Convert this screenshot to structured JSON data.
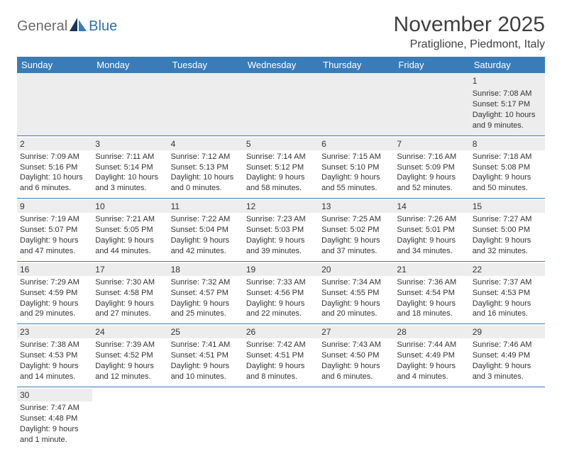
{
  "brand": {
    "part1": "General",
    "part2": "Blue"
  },
  "header": {
    "month_title": "November 2025",
    "location": "Pratiglione, Piedmont, Italy"
  },
  "style": {
    "header_bg": "#3a7cb8",
    "header_text": "#ffffff",
    "daynum_bg": "#ededed",
    "row_border": "#3a7cb8",
    "logo_gray": "#6b6b6b",
    "logo_blue": "#2f6fa8",
    "sail_dark": "#16365a",
    "sail_light": "#3a7cb8"
  },
  "day_headers": [
    "Sunday",
    "Monday",
    "Tuesday",
    "Wednesday",
    "Thursday",
    "Friday",
    "Saturday"
  ],
  "weeks": [
    [
      null,
      null,
      null,
      null,
      null,
      null,
      {
        "n": "1",
        "sr": "Sunrise: 7:08 AM",
        "ss": "Sunset: 5:17 PM",
        "d1": "Daylight: 10 hours",
        "d2": "and 9 minutes."
      }
    ],
    [
      {
        "n": "2",
        "sr": "Sunrise: 7:09 AM",
        "ss": "Sunset: 5:16 PM",
        "d1": "Daylight: 10 hours",
        "d2": "and 6 minutes."
      },
      {
        "n": "3",
        "sr": "Sunrise: 7:11 AM",
        "ss": "Sunset: 5:14 PM",
        "d1": "Daylight: 10 hours",
        "d2": "and 3 minutes."
      },
      {
        "n": "4",
        "sr": "Sunrise: 7:12 AM",
        "ss": "Sunset: 5:13 PM",
        "d1": "Daylight: 10 hours",
        "d2": "and 0 minutes."
      },
      {
        "n": "5",
        "sr": "Sunrise: 7:14 AM",
        "ss": "Sunset: 5:12 PM",
        "d1": "Daylight: 9 hours",
        "d2": "and 58 minutes."
      },
      {
        "n": "6",
        "sr": "Sunrise: 7:15 AM",
        "ss": "Sunset: 5:10 PM",
        "d1": "Daylight: 9 hours",
        "d2": "and 55 minutes."
      },
      {
        "n": "7",
        "sr": "Sunrise: 7:16 AM",
        "ss": "Sunset: 5:09 PM",
        "d1": "Daylight: 9 hours",
        "d2": "and 52 minutes."
      },
      {
        "n": "8",
        "sr": "Sunrise: 7:18 AM",
        "ss": "Sunset: 5:08 PM",
        "d1": "Daylight: 9 hours",
        "d2": "and 50 minutes."
      }
    ],
    [
      {
        "n": "9",
        "sr": "Sunrise: 7:19 AM",
        "ss": "Sunset: 5:07 PM",
        "d1": "Daylight: 9 hours",
        "d2": "and 47 minutes."
      },
      {
        "n": "10",
        "sr": "Sunrise: 7:21 AM",
        "ss": "Sunset: 5:05 PM",
        "d1": "Daylight: 9 hours",
        "d2": "and 44 minutes."
      },
      {
        "n": "11",
        "sr": "Sunrise: 7:22 AM",
        "ss": "Sunset: 5:04 PM",
        "d1": "Daylight: 9 hours",
        "d2": "and 42 minutes."
      },
      {
        "n": "12",
        "sr": "Sunrise: 7:23 AM",
        "ss": "Sunset: 5:03 PM",
        "d1": "Daylight: 9 hours",
        "d2": "and 39 minutes."
      },
      {
        "n": "13",
        "sr": "Sunrise: 7:25 AM",
        "ss": "Sunset: 5:02 PM",
        "d1": "Daylight: 9 hours",
        "d2": "and 37 minutes."
      },
      {
        "n": "14",
        "sr": "Sunrise: 7:26 AM",
        "ss": "Sunset: 5:01 PM",
        "d1": "Daylight: 9 hours",
        "d2": "and 34 minutes."
      },
      {
        "n": "15",
        "sr": "Sunrise: 7:27 AM",
        "ss": "Sunset: 5:00 PM",
        "d1": "Daylight: 9 hours",
        "d2": "and 32 minutes."
      }
    ],
    [
      {
        "n": "16",
        "sr": "Sunrise: 7:29 AM",
        "ss": "Sunset: 4:59 PM",
        "d1": "Daylight: 9 hours",
        "d2": "and 29 minutes."
      },
      {
        "n": "17",
        "sr": "Sunrise: 7:30 AM",
        "ss": "Sunset: 4:58 PM",
        "d1": "Daylight: 9 hours",
        "d2": "and 27 minutes."
      },
      {
        "n": "18",
        "sr": "Sunrise: 7:32 AM",
        "ss": "Sunset: 4:57 PM",
        "d1": "Daylight: 9 hours",
        "d2": "and 25 minutes."
      },
      {
        "n": "19",
        "sr": "Sunrise: 7:33 AM",
        "ss": "Sunset: 4:56 PM",
        "d1": "Daylight: 9 hours",
        "d2": "and 22 minutes."
      },
      {
        "n": "20",
        "sr": "Sunrise: 7:34 AM",
        "ss": "Sunset: 4:55 PM",
        "d1": "Daylight: 9 hours",
        "d2": "and 20 minutes."
      },
      {
        "n": "21",
        "sr": "Sunrise: 7:36 AM",
        "ss": "Sunset: 4:54 PM",
        "d1": "Daylight: 9 hours",
        "d2": "and 18 minutes."
      },
      {
        "n": "22",
        "sr": "Sunrise: 7:37 AM",
        "ss": "Sunset: 4:53 PM",
        "d1": "Daylight: 9 hours",
        "d2": "and 16 minutes."
      }
    ],
    [
      {
        "n": "23",
        "sr": "Sunrise: 7:38 AM",
        "ss": "Sunset: 4:53 PM",
        "d1": "Daylight: 9 hours",
        "d2": "and 14 minutes."
      },
      {
        "n": "24",
        "sr": "Sunrise: 7:39 AM",
        "ss": "Sunset: 4:52 PM",
        "d1": "Daylight: 9 hours",
        "d2": "and 12 minutes."
      },
      {
        "n": "25",
        "sr": "Sunrise: 7:41 AM",
        "ss": "Sunset: 4:51 PM",
        "d1": "Daylight: 9 hours",
        "d2": "and 10 minutes."
      },
      {
        "n": "26",
        "sr": "Sunrise: 7:42 AM",
        "ss": "Sunset: 4:51 PM",
        "d1": "Daylight: 9 hours",
        "d2": "and 8 minutes."
      },
      {
        "n": "27",
        "sr": "Sunrise: 7:43 AM",
        "ss": "Sunset: 4:50 PM",
        "d1": "Daylight: 9 hours",
        "d2": "and 6 minutes."
      },
      {
        "n": "28",
        "sr": "Sunrise: 7:44 AM",
        "ss": "Sunset: 4:49 PM",
        "d1": "Daylight: 9 hours",
        "d2": "and 4 minutes."
      },
      {
        "n": "29",
        "sr": "Sunrise: 7:46 AM",
        "ss": "Sunset: 4:49 PM",
        "d1": "Daylight: 9 hours",
        "d2": "and 3 minutes."
      }
    ],
    [
      {
        "n": "30",
        "sr": "Sunrise: 7:47 AM",
        "ss": "Sunset: 4:48 PM",
        "d1": "Daylight: 9 hours",
        "d2": "and 1 minute."
      },
      null,
      null,
      null,
      null,
      null,
      null
    ]
  ]
}
